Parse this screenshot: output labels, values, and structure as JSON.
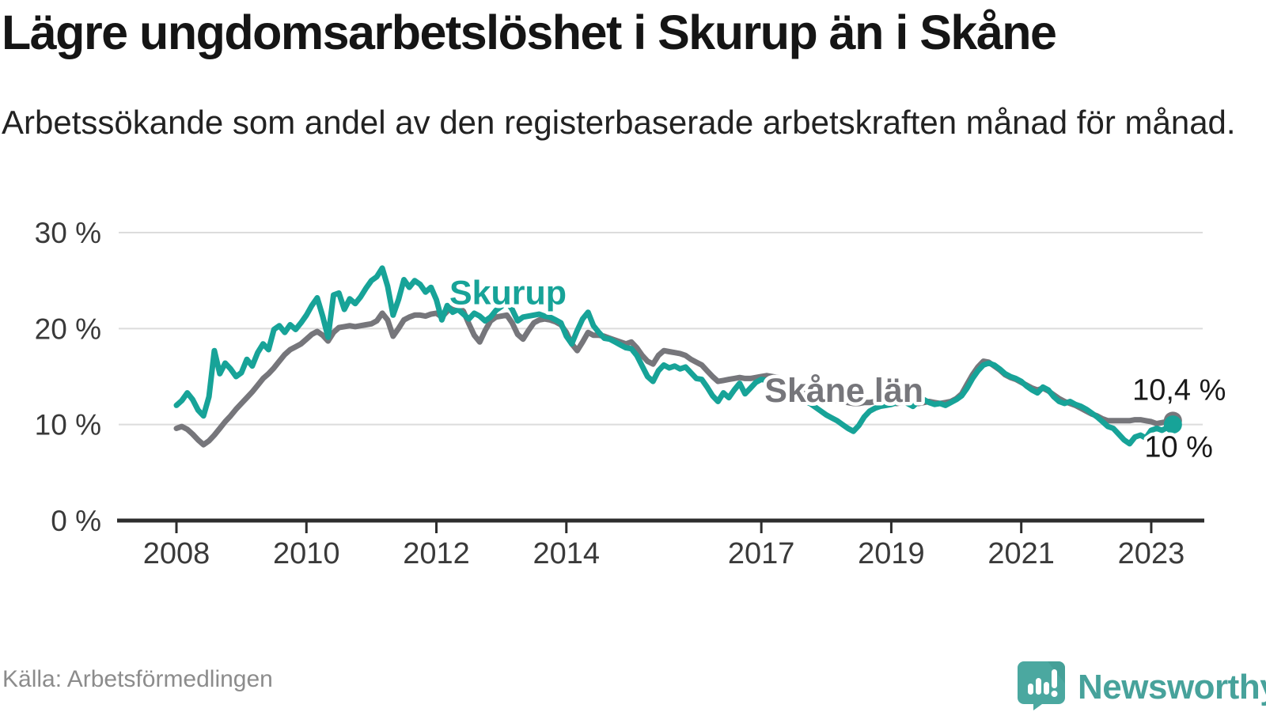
{
  "header": {
    "title": "Lägre ungdomsarbetslöshet i Skurup än i Skåne",
    "subtitle": "Arbetssökande som andel av den registerbaserade arbetskraften månad för månad."
  },
  "footer": {
    "source": "Källa: Arbetsförmedlingen",
    "brand": "Newsworthy"
  },
  "colors": {
    "skurup": "#17a398",
    "skane": "#76767b",
    "axis": "#2d2d2d",
    "grid": "#dcdcdc",
    "tick_text": "#3a3a3a",
    "value_label": "#1a1a1a",
    "source_text": "#8c8c8c",
    "brand": "#47a29b",
    "background": "#ffffff"
  },
  "chart_data": {
    "type": "line",
    "title": "Lägre ungdomsarbetslöshet i Skurup än i Skåne",
    "xlabel": "",
    "ylabel": "",
    "grid": "horizontal",
    "x_start": 2008,
    "x_end": 2023.33,
    "points_per_year": 12,
    "ylim": [
      0,
      32
    ],
    "y_ticks": [
      {
        "value": 0,
        "label": "0 %"
      },
      {
        "value": 10,
        "label": "10 %"
      },
      {
        "value": 20,
        "label": "20 %"
      },
      {
        "value": 30,
        "label": "30 %"
      }
    ],
    "x_ticks": [
      {
        "year": 2008,
        "label": "2008"
      },
      {
        "year": 2010,
        "label": "2010"
      },
      {
        "year": 2012,
        "label": "2012"
      },
      {
        "year": 2014,
        "label": "2014"
      },
      {
        "year": 2017,
        "label": "2017"
      },
      {
        "year": 2019,
        "label": "2019"
      },
      {
        "year": 2021,
        "label": "2021"
      },
      {
        "year": 2023,
        "label": "2023"
      }
    ],
    "series": [
      {
        "key": "skane",
        "name": "Skåne län",
        "color_key": "skane",
        "end_label": "10,4 %",
        "end_value": 10.4,
        "end_dot": true,
        "values": [
          9.6,
          9.8,
          9.5,
          9.0,
          8.4,
          7.9,
          8.3,
          8.9,
          9.6,
          10.3,
          10.9,
          11.6,
          12.2,
          12.8,
          13.4,
          14.1,
          14.8,
          15.3,
          15.9,
          16.6,
          17.3,
          17.8,
          18.1,
          18.4,
          18.9,
          19.4,
          19.7,
          19.3,
          18.7,
          19.6,
          20.1,
          20.2,
          20.3,
          20.2,
          20.3,
          20.4,
          20.5,
          20.8,
          21.6,
          20.9,
          19.2,
          20.0,
          20.9,
          21.2,
          21.4,
          21.4,
          21.3,
          21.5,
          21.6,
          21.2,
          21.8,
          22.2,
          22.3,
          21.8,
          20.5,
          19.3,
          18.6,
          19.8,
          20.8,
          21.2,
          21.3,
          21.4,
          20.6,
          19.4,
          18.9,
          19.8,
          20.6,
          20.9,
          21.0,
          20.9,
          20.7,
          20.4,
          19.6,
          18.4,
          17.7,
          18.6,
          19.6,
          19.3,
          19.3,
          19.2,
          19.0,
          18.8,
          18.6,
          18.4,
          18.6,
          18.0,
          17.2,
          16.6,
          16.3,
          17.2,
          17.7,
          17.6,
          17.5,
          17.4,
          17.2,
          16.8,
          16.5,
          16.2,
          15.6,
          15.0,
          14.5,
          14.6,
          14.7,
          14.8,
          14.9,
          14.8,
          14.8,
          14.9,
          15.0,
          15.1,
          15.0,
          14.9,
          14.7,
          14.4,
          14.1,
          13.8,
          13.5,
          13.3,
          13.1,
          12.9,
          12.8,
          12.7,
          12.5,
          12.4,
          12.3,
          12.2,
          12.2,
          12.3,
          12.3,
          12.4,
          12.4,
          12.3,
          12.3,
          12.2,
          12.3,
          12.4,
          12.3,
          12.2,
          12.3,
          12.4,
          12.3,
          12.2,
          12.3,
          12.4,
          12.7,
          13.2,
          14.2,
          15.2,
          16.0,
          16.6,
          16.5,
          16.1,
          15.7,
          15.2,
          14.9,
          14.7,
          14.4,
          14.1,
          13.8,
          13.6,
          13.8,
          13.5,
          13.1,
          12.7,
          12.4,
          12.2,
          12.0,
          11.7,
          11.4,
          11.1,
          10.9,
          10.6,
          10.4,
          10.4,
          10.4,
          10.4,
          10.4,
          10.5,
          10.5,
          10.4,
          10.3,
          10.1,
          10.2,
          10.3,
          10.4
        ]
      },
      {
        "key": "skurup",
        "name": "Skurup",
        "color_key": "skurup",
        "end_label": "10 %",
        "end_value": 10.0,
        "end_dot": true,
        "values": [
          12.0,
          12.5,
          13.3,
          12.6,
          11.5,
          10.9,
          12.9,
          17.7,
          15.3,
          16.4,
          15.8,
          15.0,
          15.4,
          16.8,
          16.1,
          17.5,
          18.4,
          17.8,
          19.9,
          20.3,
          19.6,
          20.4,
          19.9,
          20.6,
          21.4,
          22.4,
          23.2,
          21.3,
          19.1,
          23.5,
          23.7,
          22.0,
          23.1,
          22.6,
          23.3,
          24.2,
          25.0,
          25.4,
          26.3,
          24.4,
          21.4,
          23.0,
          25.1,
          24.3,
          25.0,
          24.6,
          23.8,
          24.3,
          23.0,
          20.9,
          22.4,
          21.7,
          22.0,
          21.5,
          21.0,
          21.6,
          21.3,
          20.8,
          21.2,
          21.9,
          22.3,
          22.8,
          22.0,
          20.8,
          21.2,
          21.3,
          21.4,
          21.5,
          21.3,
          21.2,
          20.9,
          20.6,
          19.2,
          18.4,
          19.8,
          21.0,
          21.7,
          20.3,
          19.6,
          19.0,
          18.9,
          18.6,
          18.3,
          18.0,
          17.9,
          17.2,
          16.1,
          15.0,
          14.5,
          15.6,
          16.2,
          15.9,
          16.1,
          15.8,
          16.0,
          15.4,
          14.8,
          14.7,
          13.9,
          13.0,
          12.4,
          13.3,
          12.8,
          13.6,
          14.3,
          13.2,
          13.8,
          14.4,
          14.7,
          14.6,
          14.5,
          14.6,
          14.4,
          13.9,
          13.4,
          12.9,
          12.4,
          12.2,
          11.8,
          11.4,
          11.0,
          10.7,
          10.4,
          10.0,
          9.6,
          9.3,
          9.9,
          10.8,
          11.4,
          11.7,
          11.9,
          12.0,
          12.1,
          12.3,
          12.5,
          12.2,
          11.9,
          12.4,
          12.6,
          12.3,
          12.1,
          12.2,
          12.0,
          12.3,
          12.6,
          13.0,
          13.8,
          14.8,
          15.6,
          16.2,
          16.4,
          16.2,
          15.8,
          15.3,
          15.0,
          14.8,
          14.5,
          14.0,
          13.6,
          13.3,
          13.9,
          13.6,
          12.9,
          12.4,
          12.2,
          12.4,
          12.1,
          11.9,
          11.6,
          11.2,
          10.8,
          10.3,
          9.8,
          9.6,
          9.0,
          8.4,
          8.0,
          8.7,
          8.9,
          8.6,
          9.4,
          9.6,
          9.4,
          9.7,
          10.0
        ]
      }
    ],
    "annotations": [
      {
        "text": "Skurup",
        "year": 2012.2,
        "value": 22.55,
        "series": "skurup",
        "anchor": "start",
        "bold": true
      },
      {
        "text": "Skåne län",
        "year": 2017.05,
        "value": 12.35,
        "series": "skane",
        "anchor": "start",
        "bold": true
      },
      {
        "text": "10,4 %",
        "year": 2024.15,
        "value": 12.55,
        "series": "value",
        "anchor": "end",
        "bold": false
      },
      {
        "text": "10 %",
        "year": 2023.95,
        "value": 6.65,
        "series": "value",
        "anchor": "end",
        "bold": false
      }
    ]
  }
}
